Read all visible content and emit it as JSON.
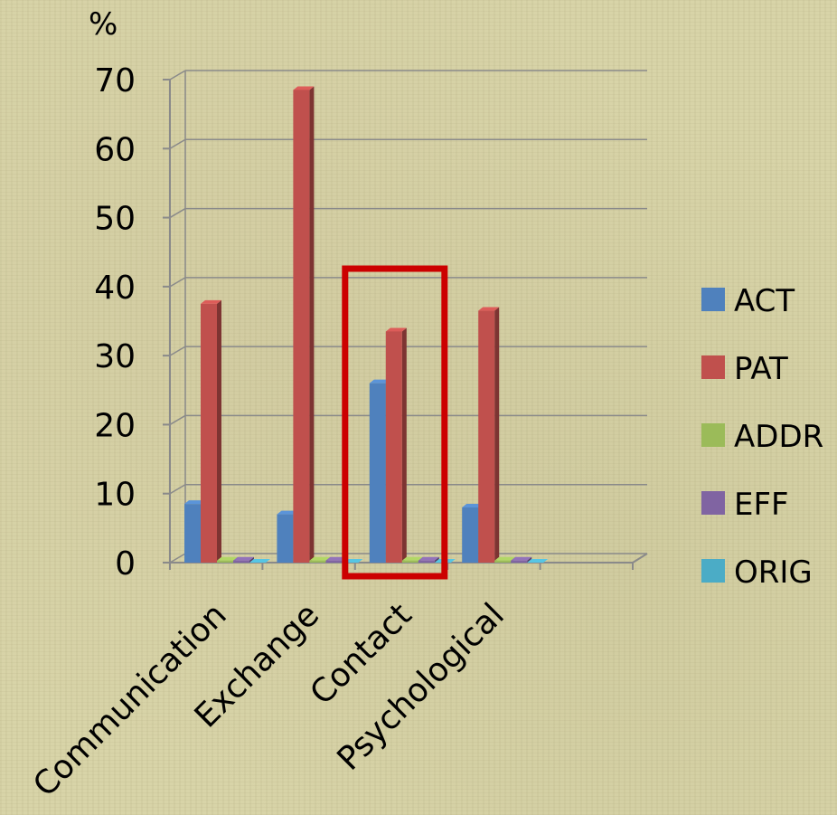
{
  "chart_data": {
    "type": "bar",
    "style": "3d-clustered-column",
    "ylabel": "%",
    "ylim": [
      0,
      70
    ],
    "yticks": [
      0,
      10,
      20,
      30,
      40,
      50,
      60,
      70
    ],
    "grid": true,
    "legend_placement": "right",
    "categories": [
      "Communication",
      "Exchange",
      "Contact",
      "Psychological"
    ],
    "series": [
      {
        "name": "ACT",
        "color": "#4f81bd",
        "values": [
          8.5,
          7,
          26,
          8
        ]
      },
      {
        "name": "PAT",
        "color": "#c0504d",
        "values": [
          37.5,
          68.5,
          33.5,
          36.5
        ]
      },
      {
        "name": "ADDR",
        "color": "#9bbb59",
        "values": [
          0.3,
          0.3,
          0.3,
          0.3
        ]
      },
      {
        "name": "EFF",
        "color": "#8064a2",
        "values": [
          0.3,
          0.3,
          0.3,
          0.3
        ]
      },
      {
        "name": "ORIG",
        "color": "#4bacc6",
        "values": [
          0,
          0,
          0,
          0
        ]
      }
    ],
    "highlight": {
      "category": "Contact",
      "color": "#cc0000"
    }
  }
}
